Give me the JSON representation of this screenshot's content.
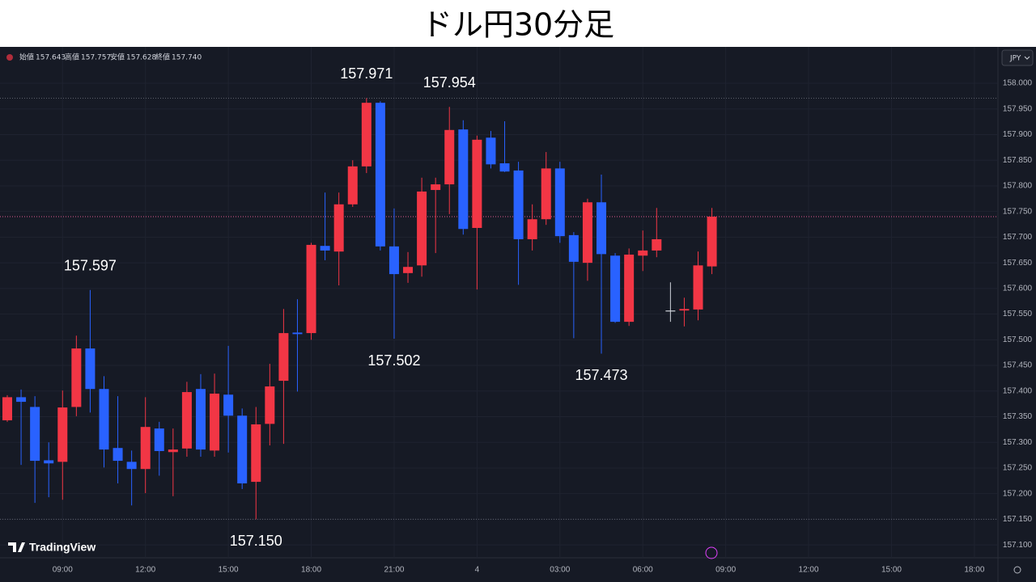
{
  "chart_data": {
    "type": "candlestick",
    "title": "ドル円30分足",
    "currency_button": "JPY",
    "brand": "TradingView",
    "ohlc_legend": [
      {
        "label": "始値",
        "value": "157.643"
      },
      {
        "label": "高値",
        "value": "157.757"
      },
      {
        "label": "安値",
        "value": "157.628"
      },
      {
        "label": "終値",
        "value": "157.740"
      }
    ],
    "up_color": "#f23645",
    "down_color": "#2962ff",
    "flat_color": "#d1d4dc",
    "last_price_color": "#e0588f",
    "grid": true,
    "categories": [
      null,
      null,
      null,
      null,
      "09:00",
      null,
      null,
      null,
      null,
      null,
      "12:00",
      null,
      null,
      null,
      null,
      null,
      "15:00",
      null,
      null,
      null,
      null,
      null,
      "18:00",
      null,
      null,
      null,
      null,
      null,
      "21:00",
      null,
      null,
      null,
      null,
      null,
      "4",
      null,
      null,
      null,
      null,
      null,
      "03:00",
      null,
      null,
      null,
      null,
      null,
      "06:00",
      null,
      null,
      null,
      null,
      null,
      "09:00",
      null,
      null,
      null,
      null,
      null,
      "12:00",
      null,
      null,
      null,
      null,
      null,
      "15:00",
      null,
      null,
      null,
      null,
      null,
      "18:00"
    ],
    "open": [
      157.343,
      157.388,
      157.369,
      157.265,
      157.262,
      157.369,
      157.483,
      157.404,
      157.289,
      157.262,
      157.248,
      157.327,
      157.281,
      157.288,
      157.404,
      157.284,
      157.393,
      157.352,
      157.223,
      157.336,
      157.42,
      157.514,
      157.513,
      157.683,
      157.672,
      157.764,
      157.838,
      157.962,
      157.682,
      157.63,
      157.645,
      157.792,
      157.803,
      157.91,
      157.718,
      157.894,
      157.844,
      157.83,
      157.696,
      157.735,
      157.834,
      157.704,
      157.65,
      157.768,
      157.664,
      157.535,
      157.664,
      157.674,
      157.557,
      157.557,
      157.559,
      157.643,
      null,
      null,
      null,
      null,
      null,
      null,
      null,
      null,
      null,
      null,
      null,
      null,
      null,
      null,
      null,
      null,
      null,
      null,
      null
    ],
    "high": [
      157.392,
      157.403,
      157.39,
      157.3,
      157.401,
      157.508,
      157.597,
      157.429,
      157.39,
      157.284,
      157.388,
      157.34,
      157.327,
      157.418,
      157.433,
      157.434,
      157.488,
      157.366,
      157.369,
      157.453,
      157.56,
      157.579,
      157.689,
      157.787,
      157.787,
      157.85,
      157.971,
      157.965,
      157.756,
      157.671,
      157.816,
      157.816,
      157.954,
      157.928,
      157.898,
      157.907,
      157.926,
      157.847,
      157.764,
      157.866,
      157.847,
      157.71,
      157.775,
      157.822,
      157.669,
      157.678,
      157.713,
      157.757,
      157.612,
      157.582,
      157.672,
      157.757,
      null,
      null,
      null,
      null,
      null,
      null,
      null,
      null,
      null,
      null,
      null,
      null,
      null,
      null,
      null,
      null,
      null,
      null,
      null
    ],
    "low": [
      157.34,
      157.256,
      157.182,
      157.193,
      157.188,
      157.351,
      157.358,
      157.251,
      157.22,
      157.177,
      157.201,
      157.235,
      157.195,
      157.272,
      157.272,
      157.272,
      157.28,
      157.209,
      157.15,
      157.294,
      157.297,
      157.399,
      157.5,
      157.655,
      157.606,
      157.759,
      157.825,
      157.674,
      157.502,
      157.611,
      157.623,
      157.669,
      157.745,
      157.705,
      157.598,
      157.834,
      157.827,
      157.607,
      157.674,
      157.724,
      157.689,
      157.503,
      157.615,
      157.473,
      157.533,
      157.527,
      157.634,
      157.661,
      157.535,
      157.526,
      157.538,
      157.628,
      null,
      null,
      null,
      null,
      null,
      null,
      null,
      null,
      null,
      null,
      null,
      null,
      null,
      null,
      null,
      null,
      null,
      null,
      null
    ],
    "close": [
      157.388,
      157.379,
      157.264,
      157.259,
      157.368,
      157.483,
      157.404,
      157.286,
      157.264,
      157.248,
      157.33,
      157.283,
      157.286,
      157.398,
      157.286,
      157.395,
      157.352,
      157.22,
      157.335,
      157.409,
      157.513,
      157.511,
      157.685,
      157.674,
      157.764,
      157.838,
      157.962,
      157.682,
      157.628,
      157.642,
      157.789,
      157.803,
      157.909,
      157.716,
      157.89,
      157.842,
      157.828,
      157.696,
      157.735,
      157.834,
      157.702,
      157.652,
      157.768,
      157.667,
      157.535,
      157.666,
      157.674,
      157.696,
      157.557,
      157.56,
      157.645,
      157.74,
      null,
      null,
      null,
      null,
      null,
      null,
      null,
      null,
      null,
      null,
      null,
      null,
      null,
      null,
      null,
      null,
      null,
      null,
      null
    ],
    "high_labels": [
      null,
      null,
      null,
      null,
      null,
      null,
      "157.597",
      null,
      null,
      null,
      null,
      null,
      null,
      null,
      null,
      null,
      null,
      null,
      null,
      null,
      null,
      null,
      null,
      null,
      null,
      null,
      "157.971",
      null,
      null,
      null,
      null,
      null,
      "157.954",
      null,
      null,
      null,
      null,
      null,
      null,
      null,
      null,
      null,
      null,
      null,
      null,
      null,
      null,
      null,
      null,
      null,
      null,
      null,
      null,
      null,
      null,
      null,
      null,
      null,
      null,
      null,
      null,
      null,
      null,
      null,
      null,
      null,
      null,
      null,
      null,
      null,
      null
    ],
    "low_labels": [
      null,
      null,
      null,
      null,
      null,
      null,
      null,
      null,
      null,
      null,
      null,
      null,
      null,
      null,
      null,
      null,
      null,
      null,
      "157.150",
      null,
      null,
      null,
      null,
      null,
      null,
      null,
      null,
      null,
      "157.502",
      null,
      null,
      null,
      null,
      null,
      null,
      null,
      null,
      null,
      null,
      null,
      null,
      null,
      null,
      "157.473",
      null,
      null,
      null,
      null,
      null,
      null,
      null,
      null,
      null,
      null,
      null,
      null,
      null,
      null,
      null,
      null,
      null,
      null,
      null,
      null,
      null,
      null,
      null,
      null,
      null,
      null,
      null
    ],
    "ylim": [
      157.075,
      158.071
    ],
    "yticks": [
      {
        "value": 157.1,
        "label": "157.100"
      },
      {
        "value": 157.15,
        "label": "157.150"
      },
      {
        "value": 157.2,
        "label": "157.200"
      },
      {
        "value": 157.25,
        "label": "157.250"
      },
      {
        "value": 157.3,
        "label": "157.300"
      },
      {
        "value": 157.35,
        "label": "157.350"
      },
      {
        "value": 157.4,
        "label": "157.400"
      },
      {
        "value": 157.45,
        "label": "157.450"
      },
      {
        "value": 157.5,
        "label": "157.500"
      },
      {
        "value": 157.55,
        "label": "157.550"
      },
      {
        "value": 157.6,
        "label": "157.600"
      },
      {
        "value": 157.65,
        "label": "157.650"
      },
      {
        "value": 157.7,
        "label": "157.700"
      },
      {
        "value": 157.75,
        "label": "157.750"
      },
      {
        "value": 157.8,
        "label": "157.800"
      },
      {
        "value": 157.85,
        "label": "157.850"
      },
      {
        "value": 157.9,
        "label": "157.900"
      },
      {
        "value": 157.95,
        "label": "157.950"
      },
      {
        "value": 158.0,
        "label": "158.000"
      }
    ]
  }
}
